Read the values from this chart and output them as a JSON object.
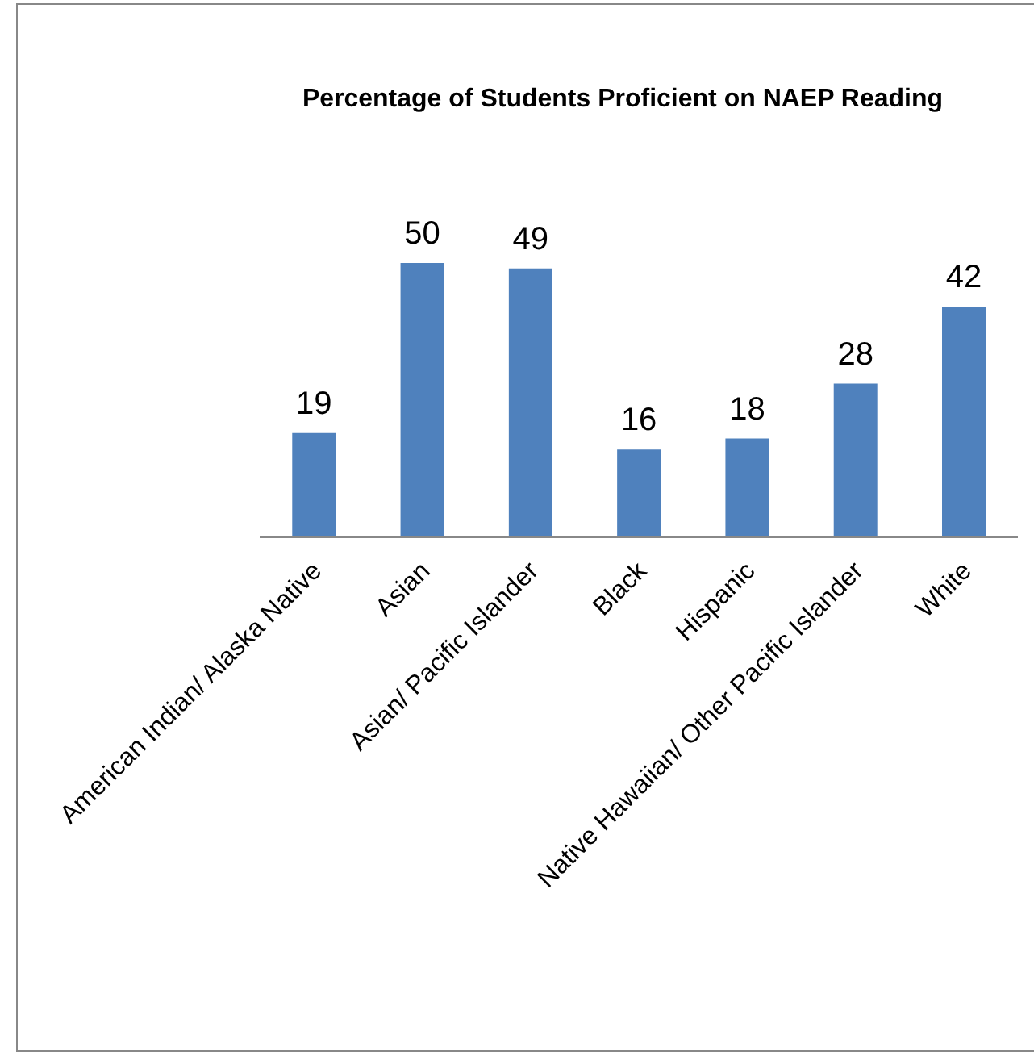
{
  "chart_data": {
    "type": "bar",
    "title": "Percentage of Students Proficient on NAEP Reading",
    "categories": [
      "American Indian/ Alaska Native",
      "Asian",
      "Asian/ Pacific Islander",
      "Black",
      "Hispanic",
      "Native Hawaiian/ Other Pacific Islander",
      "White"
    ],
    "values": [
      19,
      50,
      49,
      16,
      18,
      28,
      42
    ],
    "color": "#4f81bd",
    "data_labels": true,
    "legend": false,
    "grid": false
  }
}
